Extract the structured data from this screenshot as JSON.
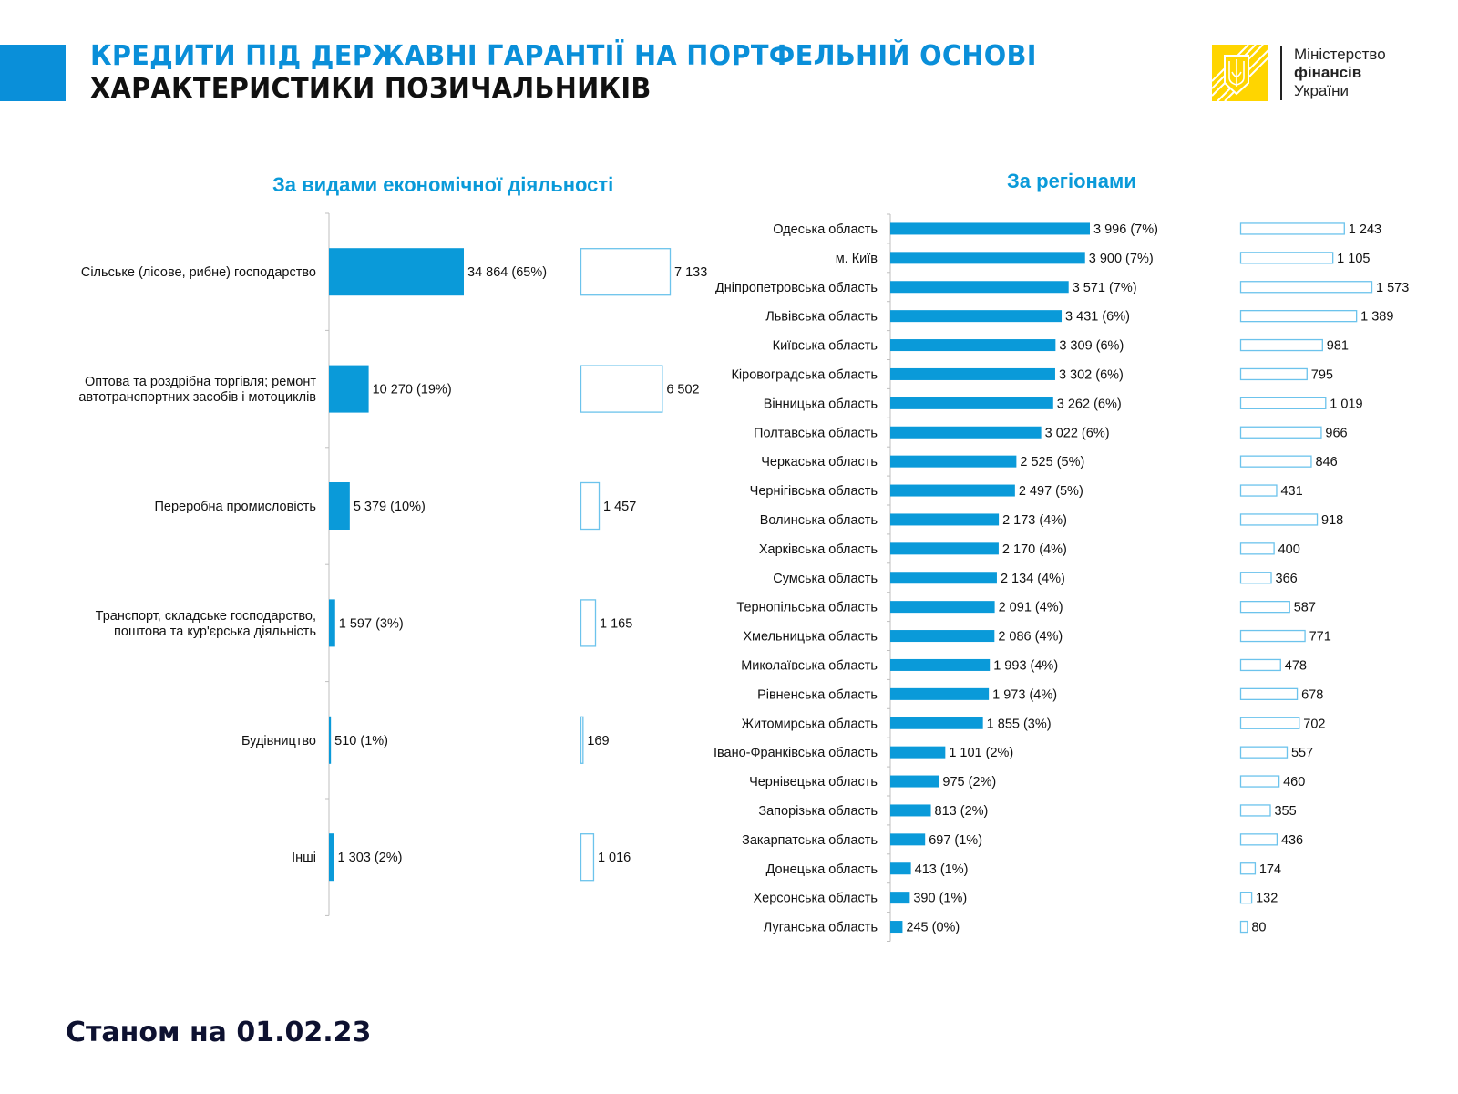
{
  "header": {
    "title_line1": "КРЕДИТИ ПІД ДЕРЖАВНІ ГАРАНТІЇ НА ПОРТФЕЛЬНІЙ ОСНОВІ",
    "title_line2": "ХАРАКТЕРИСТИКИ ПОЗИЧАЛЬНИКІВ",
    "accent_color": "#0a8fd9"
  },
  "logo": {
    "icon": "trident-coat-of-arms-icon",
    "line1": "Міністерство",
    "line2": "фінансів",
    "line3": "України",
    "color": "#ffd500"
  },
  "footer": {
    "as_of": "Станом на 01.02.23"
  },
  "chart_data": [
    {
      "type": "bar",
      "orientation": "horizontal",
      "title": "За видами економічної діяльності",
      "categories": [
        "Сільське (лісове, рибне) господарство",
        "Оптова та роздрібна торгівля; ремонт автотранспортних засобів і мотоциклів",
        "Переробна промисловість",
        "Транспорт, складське господарство, поштова та кур'єрська діяльність",
        "Будівництво",
        "Інші"
      ],
      "series": [
        {
          "name": "filled",
          "color": "#0a9ad9",
          "values": [
            34864,
            10270,
            5379,
            1597,
            510,
            1303
          ],
          "labels": [
            "34 864 (65%)",
            "10 270 (19%)",
            "5 379 (10%)",
            "1 597 (3%)",
            "510 (1%)",
            "1 303 (2%)"
          ]
        },
        {
          "name": "outline",
          "color": "#6cc3ec",
          "values": [
            7133,
            6502,
            1457,
            1165,
            169,
            1016
          ],
          "labels": [
            "7 133",
            "6 502",
            "1 457",
            "1 165",
            "169",
            "1 016"
          ]
        }
      ],
      "xlabel": "",
      "ylabel": "",
      "grid": false,
      "legend": "none"
    },
    {
      "type": "bar",
      "orientation": "horizontal",
      "title": "За регіонами",
      "categories": [
        "Одеська область",
        "м. Київ",
        "Дніпропетровська область",
        "Львівська область",
        "Київська область",
        "Кіровоградська область",
        "Вінницька область",
        "Полтавська область",
        "Черкаська область",
        "Чернігівська область",
        "Волинська область",
        "Харківська область",
        "Сумська область",
        "Тернопільська область",
        "Хмельницька область",
        "Миколаївська область",
        "Рівненська область",
        "Житомирська область",
        "Івано-Франківська область",
        "Чернівецька область",
        "Запорізька область",
        "Закарпатська область",
        "Донецька область",
        "Херсонська область",
        "Луганська область"
      ],
      "series": [
        {
          "name": "filled",
          "color": "#0a9ad9",
          "values": [
            3996,
            3900,
            3571,
            3431,
            3309,
            3302,
            3262,
            3022,
            2525,
            2497,
            2173,
            2170,
            2134,
            2091,
            2086,
            1993,
            1973,
            1855,
            1101,
            975,
            813,
            697,
            413,
            390,
            245
          ],
          "labels": [
            "3 996 (7%)",
            "3 900 (7%)",
            "3 571 (7%)",
            "3 431 (6%)",
            "3 309 (6%)",
            "3 302 (6%)",
            "3 262 (6%)",
            "3 022 (6%)",
            "2 525 (5%)",
            "2 497 (5%)",
            "2 173 (4%)",
            "2 170 (4%)",
            "2 134 (4%)",
            "2 091 (4%)",
            "2 086 (4%)",
            "1 993 (4%)",
            "1 973 (4%)",
            "1 855 (3%)",
            "1 101 (2%)",
            "975 (2%)",
            "813 (2%)",
            "697 (1%)",
            "413 (1%)",
            "390 (1%)",
            "245 (0%)"
          ]
        },
        {
          "name": "outline",
          "color": "#6cc3ec",
          "values": [
            1243,
            1105,
            1573,
            1389,
            981,
            795,
            1019,
            966,
            846,
            431,
            918,
            400,
            366,
            587,
            771,
            478,
            678,
            702,
            557,
            460,
            355,
            436,
            174,
            132,
            80
          ],
          "labels": [
            "1 243",
            "1 105",
            "1 573",
            "1 389",
            "981",
            "795",
            "1 019",
            "966",
            "846",
            "431",
            "918",
            "400",
            "366",
            "587",
            "771",
            "478",
            "678",
            "702",
            "557",
            "460",
            "355",
            "436",
            "174",
            "132",
            "80"
          ]
        }
      ],
      "xlabel": "",
      "ylabel": "",
      "grid": false,
      "legend": "none"
    }
  ]
}
